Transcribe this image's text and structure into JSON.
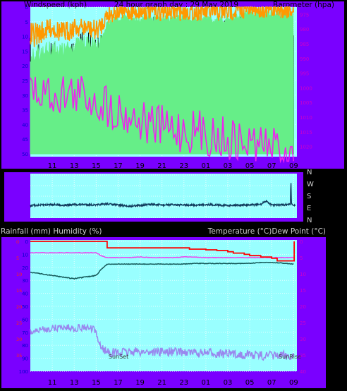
{
  "top": {
    "left_title": "Windspeed (kph)",
    "center_title": "24 hour graph day : 29 May 2019",
    "right_title": "Barometer (hpa)"
  },
  "bottom": {
    "left_title": "Rainfall (mm)  Humidity (%)",
    "right_title": "Temperature (°C)Dew Point (°C)"
  },
  "wind_dir_labels": [
    "N",
    "W",
    "S",
    "E",
    "N"
  ],
  "x_ticks": [
    "11",
    "13",
    "15",
    "17",
    "19",
    "21",
    "23",
    "01",
    "03",
    "05",
    "07",
    "09"
  ],
  "colors": {
    "frame": "#7a00ff",
    "plot_bg": "#99ffff",
    "wind_gust": "#000000",
    "wind_avg": "#66ee88",
    "wind_min": "#ff9900",
    "barometer": "#ee22ee",
    "wind_dir": "#103a5c",
    "humidity": "#9988ee",
    "temperature": "#155a5a",
    "dew_point": "#ee44ee",
    "rainfall": "#ff0000",
    "axis_text_left": "#0000cc",
    "axis_text_right": "#cc00cc"
  },
  "chart_data": [
    {
      "type": "line",
      "name": "wind_baro",
      "title": "24 hour graph day : 29 May 2019",
      "x_range_hours": [
        9,
        33.3
      ],
      "left_axis": {
        "label": "Windspeed (kph)",
        "range": [
          0,
          50
        ],
        "ticks": [
          0,
          5,
          10,
          15,
          20,
          25,
          30,
          35,
          40,
          45,
          50
        ]
      },
      "right_axis": {
        "label": "Barometer (hpa)",
        "range": [
          972.5,
          1022.5
        ],
        "ticks": [
          975,
          980,
          985,
          990,
          995,
          1000,
          1005,
          1010,
          1015,
          1020
        ]
      },
      "series": [
        {
          "name": "Gust",
          "x": [
            9,
            11,
            12,
            13,
            14,
            15,
            15.5,
            16,
            17,
            18,
            19,
            20,
            21,
            22,
            23,
            24,
            25,
            26,
            27,
            28,
            28.5,
            29,
            30,
            31,
            32,
            33
          ],
          "values": [
            35,
            32,
            33,
            30,
            28,
            30,
            27,
            22,
            16,
            13,
            14,
            11,
            12,
            13,
            12,
            12,
            12,
            14,
            13,
            12,
            9,
            7,
            7,
            7,
            7,
            9
          ]
        },
        {
          "name": "Average",
          "x": [
            9,
            11,
            12,
            13,
            14,
            15,
            15.5,
            16,
            17,
            18,
            19,
            20,
            21,
            22,
            23,
            24,
            25,
            26,
            27,
            28,
            28.5,
            29,
            30,
            31,
            32,
            33
          ],
          "values": [
            17,
            14,
            15,
            13,
            12,
            13,
            11,
            6,
            4,
            4,
            4,
            3.5,
            4,
            4,
            4,
            4,
            4,
            4.5,
            4,
            3.5,
            2.5,
            2,
            2,
            2.5,
            2.5,
            2.5
          ]
        },
        {
          "name": "Min",
          "x": [
            9,
            11,
            12,
            13,
            14,
            15,
            15.5,
            16,
            17,
            18,
            19,
            20,
            21,
            22,
            23,
            24,
            25,
            26,
            27,
            28,
            28.5,
            29,
            30,
            31,
            32,
            33
          ],
          "values": [
            10,
            7,
            9,
            7,
            7,
            8,
            6,
            2.5,
            1.5,
            1.5,
            1.5,
            1.2,
            1.5,
            1.5,
            1.5,
            1.5,
            1.5,
            2,
            1.5,
            1.2,
            0.8,
            0.5,
            0.5,
            0.8,
            0.8,
            0.8
          ]
        },
        {
          "name": "Barometer",
          "x": [
            9,
            10,
            12,
            14,
            15,
            15.5,
            16,
            17,
            18,
            19,
            20,
            21,
            22,
            23,
            24,
            25,
            26,
            27,
            28,
            29,
            30,
            31,
            32,
            33
          ],
          "values": [
            1001.5,
            1001.5,
            1002,
            1002.5,
            1004,
            1005,
            1006,
            1008,
            1009.5,
            1011,
            1012.5,
            1013.5,
            1014,
            1014.5,
            1015,
            1015.5,
            1016.5,
            1017.5,
            1018.5,
            1019,
            1019.5,
            1020,
            1021,
            1022
          ]
        }
      ]
    },
    {
      "type": "line",
      "name": "wind_direction",
      "x_range_hours": [
        9,
        33.3
      ],
      "y_range_deg": [
        0,
        360
      ],
      "axis_labels": [
        "N",
        "W",
        "S",
        "E",
        "N"
      ],
      "series": [
        {
          "name": "Direction",
          "x": [
            9,
            10,
            11,
            12,
            13,
            14,
            15,
            16,
            17,
            18,
            19,
            20,
            21,
            22,
            23,
            24,
            25,
            26,
            27,
            28,
            29,
            30,
            30.5,
            31,
            32,
            32.7,
            32.75,
            32.8,
            33,
            33.2
          ],
          "values": [
            260,
            255,
            250,
            258,
            252,
            250,
            255,
            245,
            255,
            265,
            258,
            250,
            255,
            252,
            255,
            258,
            250,
            255,
            258,
            255,
            255,
            250,
            220,
            255,
            255,
            250,
            30,
            250,
            255,
            255
          ]
        }
      ]
    },
    {
      "type": "line",
      "name": "temp_hum_rain",
      "x_range_hours": [
        9,
        33.3
      ],
      "left_axis": {
        "label": "Rainfall (mm)  Humidity (%)",
        "range": [
          0,
          100
        ],
        "ticks": [
          0,
          10,
          20,
          30,
          40,
          50,
          60,
          70,
          80,
          90,
          100
        ]
      },
      "right_axis": {
        "label": "Temperature (°C)Dew Point (°C)",
        "range": [
          0,
          40
        ],
        "ticks": [
          0,
          5,
          10,
          15,
          20,
          25,
          30,
          35,
          40
        ]
      },
      "annotations": [
        {
          "text": "SunSet",
          "x": 16
        },
        {
          "text": "SunRise",
          "x": 31.5
        }
      ],
      "series": [
        {
          "name": "Humidity",
          "axis": "left",
          "x": [
            9,
            10,
            11,
            12,
            13,
            14,
            14.8,
            15.2,
            15.5,
            16,
            17,
            18,
            19,
            20,
            21,
            22,
            23,
            24,
            25,
            26,
            27,
            28,
            29,
            30,
            31,
            32,
            33
          ],
          "values": [
            70,
            68,
            67,
            66,
            67,
            66,
            68,
            76,
            82,
            85,
            86,
            85,
            85,
            85,
            85,
            85,
            85,
            86,
            86,
            86,
            87,
            87,
            87,
            88,
            88,
            88,
            88
          ]
        },
        {
          "name": "Temperature",
          "axis": "right",
          "x": [
            9,
            10,
            11,
            12,
            13,
            14,
            15,
            15.5,
            16,
            17,
            18,
            19,
            20,
            21,
            22,
            23,
            24,
            25,
            26,
            27,
            28,
            29,
            30,
            31,
            32,
            33
          ],
          "values": [
            9.5,
            10,
            10.5,
            11,
            11.5,
            11,
            10.5,
            8.5,
            7,
            7,
            7,
            7,
            7,
            7,
            7,
            7,
            6.8,
            6.8,
            6.8,
            6.8,
            6.8,
            6.8,
            6.5,
            6.5,
            6.7,
            7
          ]
        },
        {
          "name": "Dew Point",
          "axis": "right",
          "x": [
            9,
            10,
            11,
            12,
            13,
            14,
            15,
            15.5,
            16,
            17,
            18,
            19,
            20,
            21,
            22,
            23,
            24,
            25,
            26,
            27,
            28,
            29,
            30,
            31,
            32,
            33
          ],
          "values": [
            3.5,
            3.5,
            3.5,
            3.5,
            3.5,
            3.5,
            3.5,
            4.5,
            5,
            5,
            5,
            4.8,
            5,
            5,
            5,
            4.8,
            4.8,
            5,
            5,
            5,
            5,
            5,
            5,
            5,
            5,
            5
          ]
        },
        {
          "name": "Rainfall",
          "axis": "left",
          "x": [
            9,
            15.9,
            16,
            19.5,
            19.7,
            22,
            23.5,
            25,
            26,
            27,
            27.5,
            28.5,
            29,
            29.5,
            30,
            30.5,
            31,
            31.5,
            32.8,
            33,
            33.05
          ],
          "values": [
            0,
            0,
            5,
            5,
            5,
            5,
            6,
            6.5,
            7,
            8,
            9,
            10,
            11,
            11,
            12,
            12,
            13,
            15,
            15,
            15,
            0
          ]
        }
      ]
    }
  ]
}
